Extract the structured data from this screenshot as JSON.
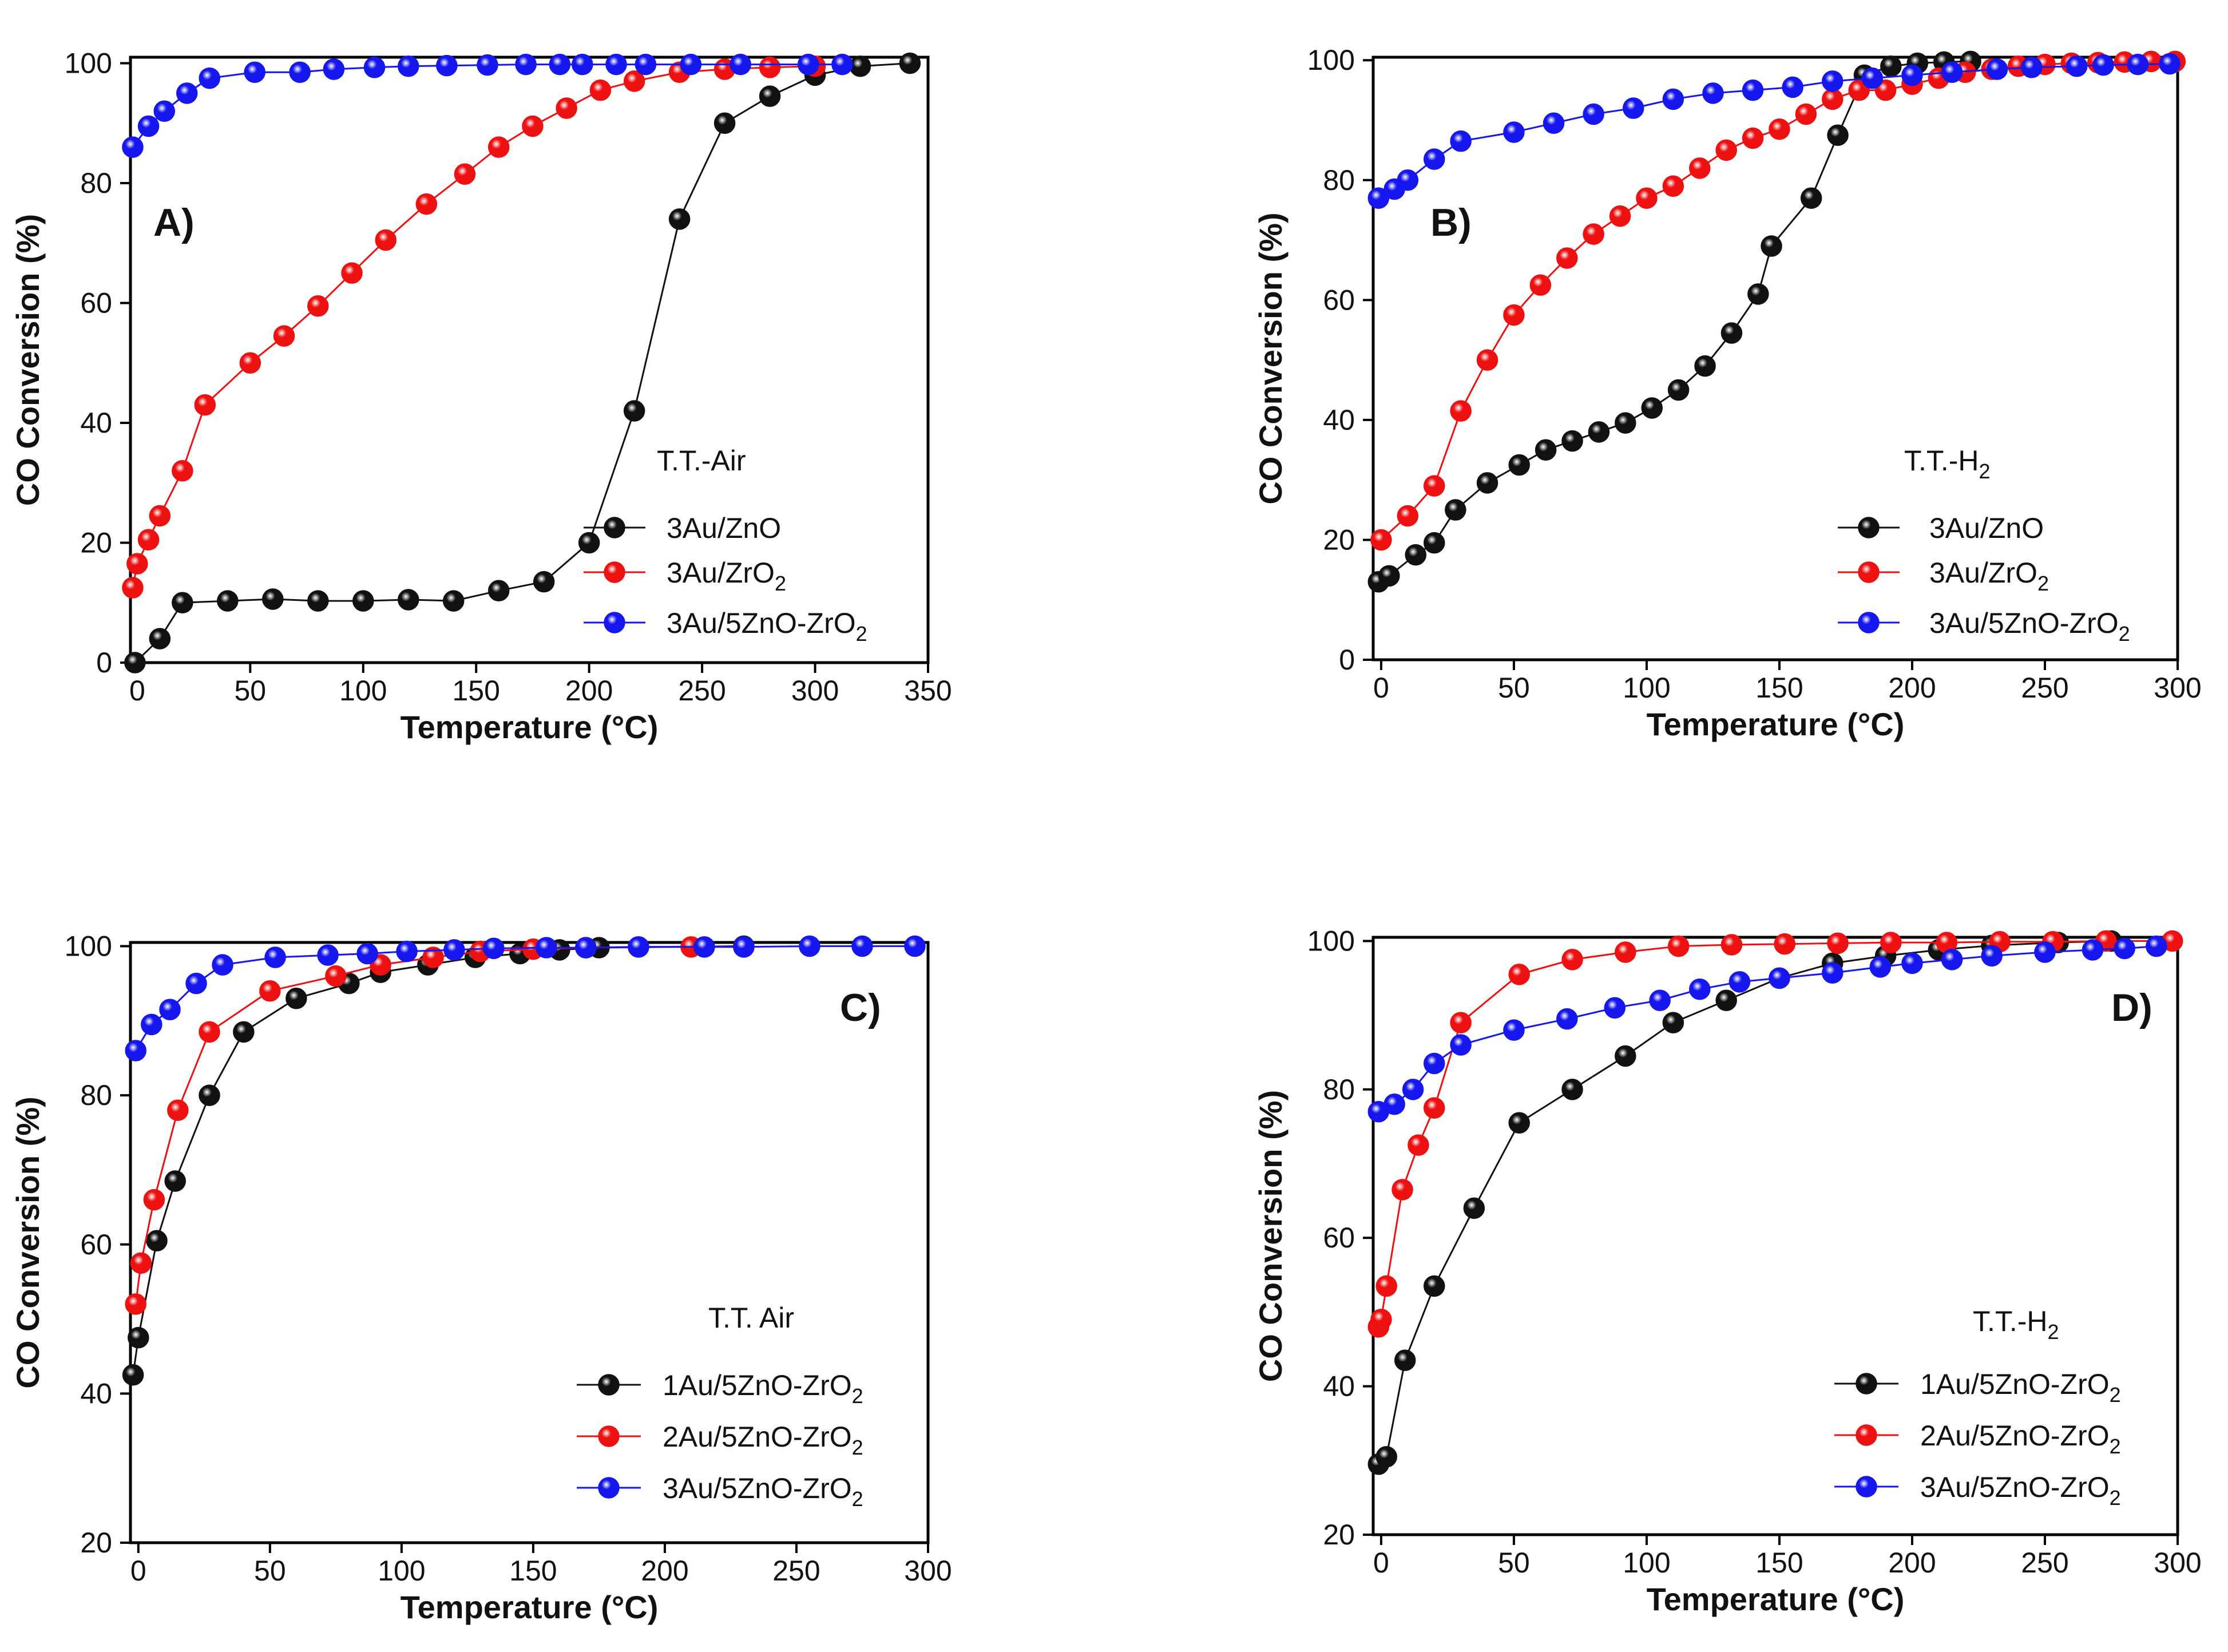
{
  "colors": {
    "black_series": "#111111",
    "red_series": "#ee1111",
    "blue_series": "#1616ee",
    "axis": "#000000",
    "background": "#ffffff"
  },
  "chart_data": [
    {
      "type": "line",
      "panel": "A)",
      "condition": "T.T.-Air",
      "xlabel": "Temperature (°C)",
      "ylabel": "CO  Conversion (%)",
      "xlim": [
        -3,
        350
      ],
      "ylim": [
        0,
        101
      ],
      "xticks": [
        0,
        50,
        100,
        150,
        200,
        250,
        300,
        350
      ],
      "yticks": [
        0,
        20,
        40,
        60,
        80,
        100
      ],
      "legend_title": {
        "text": "T.T.-Air",
        "sub": ""
      },
      "legend_position": "right",
      "series": [
        {
          "name": "3Au/ZnO",
          "label_main": "3Au/ZnO",
          "label_sub": "",
          "label_tail": "",
          "color": "#111111",
          "x": [
            -1,
            10,
            20,
            40,
            60,
            80,
            100,
            120,
            140,
            160,
            180,
            200,
            220,
            240,
            260,
            280,
            300,
            320,
            342
          ],
          "y": [
            0,
            4,
            10,
            10.3,
            10.6,
            10.3,
            10.3,
            10.5,
            10.3,
            12,
            13.5,
            20,
            42,
            74,
            90,
            94.5,
            98,
            99.5,
            100
          ]
        },
        {
          "name": "3Au/ZrO2",
          "label_main": "3Au/ZrO",
          "label_sub": "2",
          "label_tail": "",
          "color": "#ee1111",
          "x": [
            -2,
            0,
            5,
            10,
            20,
            30,
            50,
            65,
            80,
            95,
            110,
            128,
            145,
            160,
            175,
            190,
            205,
            220,
            240,
            260,
            280,
            300
          ],
          "y": [
            12.5,
            16.5,
            20.5,
            24.5,
            32,
            43,
            50,
            54.5,
            59.5,
            65,
            70.5,
            76.5,
            81.5,
            86,
            89.5,
            92.5,
            95.5,
            97,
            98.5,
            99,
            99.3,
            99.5
          ]
        },
        {
          "name": "3Au/5ZnO-ZrO2",
          "label_main": "3Au/5ZnO-ZrO",
          "label_sub": "2",
          "label_tail": "",
          "color": "#1616ee",
          "x": [
            -2,
            5,
            12,
            22,
            32,
            52,
            72,
            87,
            105,
            120,
            137,
            155,
            172,
            187,
            197,
            212,
            225,
            245,
            267,
            297,
            312
          ],
          "y": [
            86,
            89.5,
            92,
            95,
            97.5,
            98.5,
            98.5,
            99,
            99.3,
            99.5,
            99.6,
            99.7,
            99.8,
            99.8,
            99.8,
            99.8,
            99.8,
            99.8,
            99.8,
            99.8,
            99.8
          ]
        }
      ]
    },
    {
      "type": "line",
      "panel": "B)",
      "condition": "T.T.-H2",
      "xlabel": "Temperature (°C)",
      "ylabel": "CO  Conversion (%)",
      "xlim": [
        -3,
        300
      ],
      "ylim": [
        0,
        100.5
      ],
      "xticks": [
        0,
        50,
        100,
        150,
        200,
        250,
        300
      ],
      "yticks": [
        0,
        20,
        40,
        60,
        80,
        100
      ],
      "legend_title": {
        "text": "T.T.-H",
        "sub": "2"
      },
      "legend_position": "right",
      "series": [
        {
          "name": "3Au/ZnO",
          "label_main": "3Au/ZnO",
          "label_sub": "",
          "label_tail": "",
          "color": "#111111",
          "x": [
            -1,
            3,
            13,
            20,
            28,
            40,
            52,
            62,
            72,
            82,
            92,
            102,
            112,
            122,
            132,
            142,
            147,
            162,
            172,
            182,
            192,
            202,
            212,
            222
          ],
          "y": [
            13,
            14,
            17.5,
            19.5,
            25,
            29.5,
            32.5,
            35,
            36.5,
            38,
            39.5,
            42,
            45,
            49,
            54.5,
            61,
            69,
            77,
            87.5,
            97.5,
            99,
            99.5,
            99.7,
            99.8
          ]
        },
        {
          "name": "3Au/ZrO2",
          "label_main": "3Au/ZrO",
          "label_sub": "2",
          "label_tail": "",
          "color": "#ee1111",
          "x": [
            0,
            10,
            20,
            30,
            40,
            50,
            60,
            70,
            80,
            90,
            100,
            110,
            120,
            130,
            140,
            150,
            160,
            170,
            180,
            190,
            200,
            210,
            220,
            230,
            240,
            250,
            260,
            270,
            280,
            290,
            299
          ],
          "y": [
            20,
            24,
            29,
            41.5,
            50,
            57.5,
            62.5,
            67,
            71,
            74,
            77,
            79,
            82,
            85,
            87,
            88.5,
            91,
            93.5,
            95,
            95,
            96,
            97,
            98,
            98.5,
            99,
            99.3,
            99.5,
            99.6,
            99.7,
            99.8,
            99.8
          ]
        },
        {
          "name": "3Au/5ZnO-ZrO2",
          "label_main": "3Au/5ZnO-ZrO",
          "label_sub": "2",
          "label_tail": "",
          "color": "#1616ee",
          "x": [
            -1,
            5,
            10,
            20,
            30,
            50,
            65,
            80,
            95,
            110,
            125,
            140,
            155,
            170,
            185,
            200,
            215,
            232,
            245,
            262,
            272,
            285,
            297
          ],
          "y": [
            77,
            78.5,
            80,
            83.5,
            86.5,
            88,
            89.5,
            91,
            92,
            93.5,
            94.5,
            95,
            95.5,
            96.5,
            97,
            97.5,
            98,
            98.5,
            98.8,
            99,
            99.2,
            99.3,
            99.4
          ]
        }
      ]
    },
    {
      "type": "line",
      "panel": "C)",
      "condition": "T.T. Air",
      "xlabel": "Temperature (°C)",
      "ylabel": "CO  Conversion (%)",
      "xlim": [
        -3,
        300
      ],
      "ylim": [
        20,
        100.5
      ],
      "xticks": [
        0,
        50,
        100,
        150,
        200,
        250,
        300
      ],
      "yticks": [
        20,
        40,
        60,
        80,
        100
      ],
      "legend_title": {
        "text": "T.T.  Air",
        "sub": ""
      },
      "legend_position": "right",
      "series": [
        {
          "name": "1Au/5ZnO-ZrO2",
          "label_main": "1Au/5ZnO-ZrO",
          "label_sub": "2",
          "label_tail": "",
          "color": "#111111",
          "x": [
            -2,
            0,
            7,
            14,
            27,
            40,
            60,
            80,
            92,
            110,
            128,
            145,
            160,
            175,
            230
          ],
          "y": [
            42.5,
            47.5,
            60.5,
            68.5,
            80,
            88.5,
            93,
            95,
            96.5,
            97.5,
            98.5,
            99,
            99.5,
            99.8,
            100
          ]
        },
        {
          "name": "2Au/5ZnO-ZrO2",
          "label_main": "2Au/5ZnO-ZrO",
          "label_sub": "2",
          "label_tail": "",
          "color": "#ee1111",
          "x": [
            -1,
            1,
            6,
            15,
            27,
            50,
            75,
            92,
            112,
            130,
            150,
            170,
            190,
            210,
            230
          ],
          "y": [
            52,
            57.5,
            66,
            78,
            88.5,
            94,
            96,
            97.5,
            98.5,
            99.3,
            99.6,
            99.8,
            99.9,
            99.9,
            99.9
          ]
        },
        {
          "name": "3Au/5ZnO-ZrO2",
          "label_main": "3Au/5ZnO-ZrO",
          "label_sub": "2",
          "label_tail": "",
          "color": "#1616ee",
          "x": [
            -1,
            5,
            12,
            22,
            32,
            52,
            72,
            87,
            102,
            120,
            135,
            155,
            170,
            190,
            215,
            230,
            255,
            275,
            295
          ],
          "y": [
            86,
            89.5,
            91.5,
            95,
            97.5,
            98.5,
            98.8,
            99,
            99.3,
            99.5,
            99.7,
            99.8,
            99.8,
            99.9,
            99.9,
            99.9,
            100,
            100,
            100
          ]
        }
      ]
    },
    {
      "type": "line",
      "panel": "D)",
      "condition": "T.T.-H2",
      "xlabel": "Temperature (°C)",
      "ylabel": "CO  Conversion (%)",
      "xlim": [
        -3,
        300
      ],
      "ylim": [
        20,
        100.5
      ],
      "xticks": [
        0,
        50,
        100,
        150,
        200,
        250,
        300
      ],
      "yticks": [
        20,
        40,
        60,
        80,
        100
      ],
      "legend_title": {
        "text": "T.T.-H",
        "sub": "2"
      },
      "legend_position": "right",
      "series": [
        {
          "name": "1Au/5ZnO-ZrO2",
          "label_main": "1Au/5ZnO-ZrO",
          "label_sub": "2",
          "label_tail": "",
          "color": "#111111",
          "x": [
            -1,
            2,
            9,
            20,
            35,
            52,
            72,
            92,
            110,
            130,
            150,
            170,
            190,
            210,
            230,
            255,
            275
          ],
          "y": [
            29.5,
            30.5,
            43.5,
            53.5,
            64,
            75.5,
            80,
            84.5,
            89,
            92,
            95,
            97,
            98,
            98.8,
            99.4,
            99.8,
            100
          ]
        },
        {
          "name": "2Au/5ZnO-ZrO2",
          "label_main": "2Au/5ZnO-ZrO",
          "label_sub": "2",
          "label_tail": "",
          "color": "#ee1111",
          "x": [
            -1,
            0,
            2,
            8,
            14,
            20,
            30,
            52,
            72,
            92,
            112,
            132,
            152,
            172,
            192,
            213,
            233,
            253,
            273,
            298
          ],
          "y": [
            48,
            49,
            53.5,
            66.5,
            72.5,
            77.5,
            89,
            95.5,
            97.5,
            98.5,
            99.3,
            99.5,
            99.6,
            99.7,
            99.8,
            99.8,
            99.9,
            99.9,
            100,
            100
          ]
        },
        {
          "name": "3Au/5ZnO-ZrO2",
          "label_main": "3Au/5ZnO-ZrO",
          "label_sub": "2",
          "label_tail": "",
          "color": "#1616ee",
          "x": [
            -1,
            5,
            12,
            20,
            30,
            50,
            70,
            88,
            105,
            120,
            135,
            150,
            170,
            188,
            200,
            215,
            230,
            250,
            268,
            280,
            292
          ],
          "y": [
            77,
            78,
            80,
            83.5,
            86,
            88,
            89.5,
            91,
            92,
            93.5,
            94.5,
            95,
            95.7,
            96.5,
            97,
            97.5,
            98,
            98.5,
            98.8,
            99,
            99.3
          ]
        }
      ]
    }
  ]
}
